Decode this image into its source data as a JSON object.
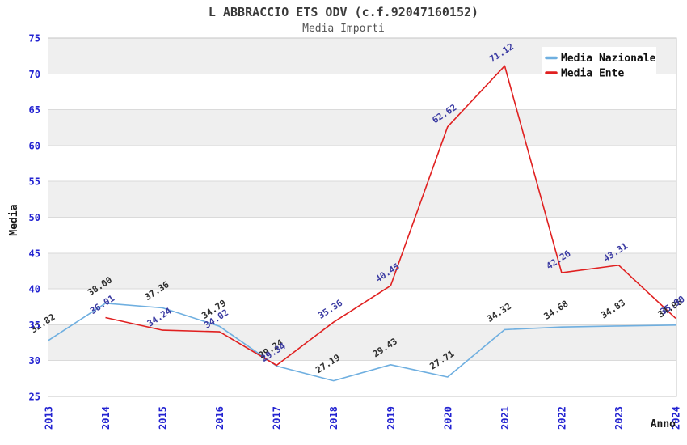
{
  "header": {
    "title": "L ABBRACCIO ETS ODV (c.f.92047160152)",
    "subtitle": "Media Importi"
  },
  "chart_data": {
    "type": "line",
    "title": "L ABBRACCIO ETS ODV (c.f.92047160152)",
    "subtitle": "Media Importi",
    "xlabel": "Anno",
    "ylabel": "Media",
    "x": [
      2013,
      2014,
      2015,
      2016,
      2017,
      2018,
      2019,
      2020,
      2021,
      2022,
      2023,
      2024
    ],
    "xtick_labels": [
      "2013",
      "2014",
      "2015",
      "2016",
      "2017",
      "2018",
      "2019",
      "2020",
      "2021",
      "2022",
      "2023",
      "2024"
    ],
    "ylim": [
      25,
      75
    ],
    "ytick_step": 5,
    "ytick_labels": [
      "25",
      "30",
      "35",
      "40",
      "45",
      "50",
      "55",
      "60",
      "65",
      "70",
      "75"
    ],
    "grid": "horizontal-bands-alternating",
    "legend_position": "top-right-inside",
    "series": [
      {
        "name": "Media Nazionale",
        "color": "#6fafe0",
        "label_color": "#2d2d2d",
        "values": [
          32.82,
          38.0,
          37.36,
          34.79,
          29.24,
          27.19,
          29.43,
          27.71,
          34.32,
          34.68,
          34.83,
          34.96
        ],
        "point_labels": [
          "32.82",
          "38.00",
          "37.36",
          "34.79",
          "29.24",
          "27.19",
          "29.43",
          "27.71",
          "34.32",
          "34.68",
          "34.83",
          "34.96"
        ]
      },
      {
        "name": "Media Ente",
        "color": "#e02020",
        "label_color": "#3a3aa2",
        "values": [
          null,
          36.01,
          34.24,
          34.02,
          29.34,
          35.36,
          40.45,
          62.62,
          71.12,
          42.26,
          43.31,
          35.9
        ],
        "point_labels": [
          null,
          "36.01",
          "34.24",
          "34.02",
          "29.34",
          "35.36",
          "40.45",
          "62.62",
          "71.12",
          "42.26",
          "43.31",
          "35.90"
        ]
      }
    ],
    "colors": {
      "axis_tick_text": "#2323d1",
      "axis_title_text": "#1a1a1a",
      "band_fill": "#efefef",
      "gridline": "#dadada",
      "plot_border": "#c4c4c4",
      "legend_bg": "#ffffff",
      "legend_text": "#111111",
      "title_text": "#3a3a3a",
      "subtitle_text": "#555555"
    }
  }
}
